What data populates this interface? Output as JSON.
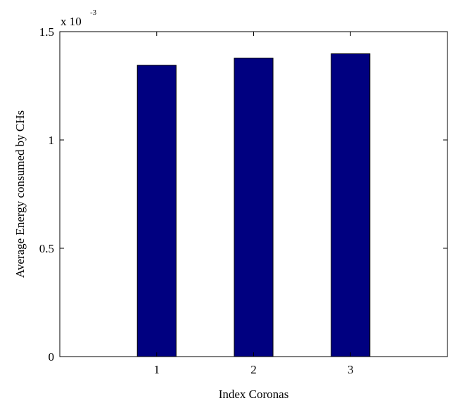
{
  "chart_data": {
    "type": "bar",
    "categories": [
      "1",
      "2",
      "3"
    ],
    "values": [
      0.001345,
      0.001378,
      0.001398
    ],
    "title": "",
    "xlabel": "Index Coronas",
    "ylabel": "Average Energy consumed by CHs",
    "ylim": [
      0,
      0.0015
    ],
    "yticks": [
      0,
      0.0005,
      0.001,
      0.0015
    ],
    "ytick_labels": [
      "0",
      "0.5",
      "1",
      "1.5"
    ],
    "y_exponent_base": "x 10",
    "y_exponent_power": "-3",
    "bar_color": "#000080",
    "grid": false,
    "legend": "none"
  }
}
